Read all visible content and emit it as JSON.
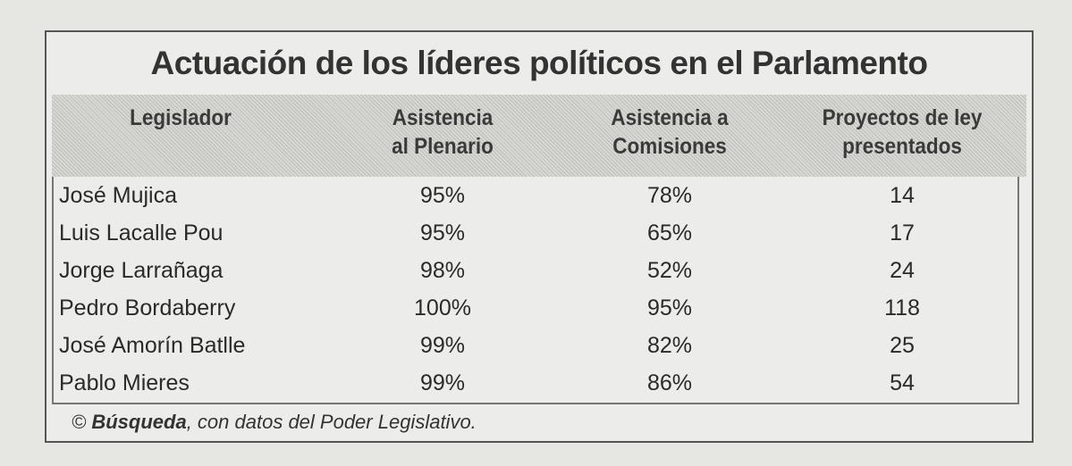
{
  "title": "Actuación de los líderes políticos en el Parlamento",
  "table": {
    "headers": [
      [
        "Legislador"
      ],
      [
        "Asistencia",
        "al Plenario"
      ],
      [
        "Asistencia a",
        "Comisiones"
      ],
      [
        "Proyectos de ley",
        "presentados"
      ]
    ],
    "rows": [
      [
        "José Mujica",
        "95%",
        "78%",
        "14"
      ],
      [
        "Luis Lacalle Pou",
        "95%",
        "65%",
        "17"
      ],
      [
        "Jorge Larrañaga",
        "98%",
        "52%",
        "24"
      ],
      [
        "Pedro Bordaberry",
        "100%",
        "95%",
        "118"
      ],
      [
        "José Amorín Batlle",
        "99%",
        "82%",
        "25"
      ],
      [
        "Pablo Mieres",
        "99%",
        "86%",
        "54"
      ]
    ]
  },
  "source": {
    "prefix": "©",
    "emphasis": "Búsqueda",
    "text": ", con datos del Poder Legislativo."
  }
}
